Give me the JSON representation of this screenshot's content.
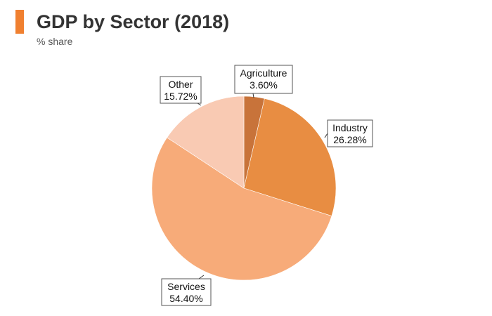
{
  "header": {
    "title": "GDP by Sector (2018)",
    "subtitle": "% share",
    "accent_color": "#f08030"
  },
  "chart_data": {
    "type": "pie",
    "title": "GDP by Sector (2018)",
    "subtitle": "% share",
    "start_angle_deg": 0,
    "direction": "clockwise",
    "slices": [
      {
        "label": "Agriculture",
        "value": 3.6,
        "display": "3.60%",
        "color": "#c8733a"
      },
      {
        "label": "Industry",
        "value": 26.28,
        "display": "26.28%",
        "color": "#e88d42"
      },
      {
        "label": "Services",
        "value": 54.4,
        "display": "54.40%",
        "color": "#f7ab79"
      },
      {
        "label": "Other",
        "value": 15.72,
        "display": "15.72%",
        "color": "#f9cab3"
      }
    ]
  }
}
